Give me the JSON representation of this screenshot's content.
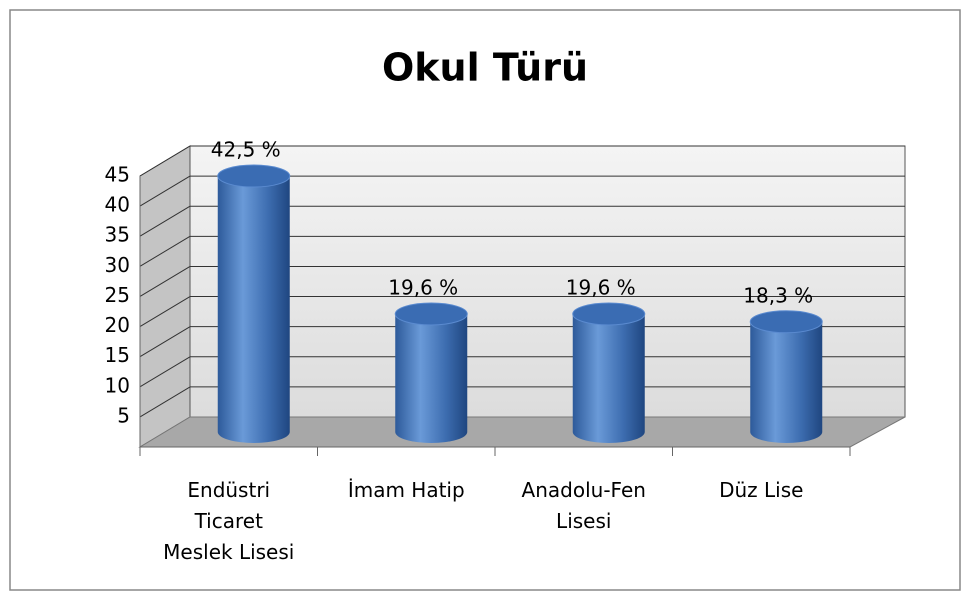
{
  "chart_data": {
    "type": "bar",
    "title": "Okul Türü",
    "categories": [
      "Endüstri Ticaret Meslek Lisesi",
      "İmam Hatip",
      "Anadolu-Fen Lisesi",
      "Düz Lise"
    ],
    "values": [
      42.5,
      19.6,
      19.6,
      18.3
    ],
    "value_labels": [
      "42,5 %",
      "19,6 %",
      "19,6 %",
      "18,3 %"
    ],
    "color": "#4a7ebf",
    "ylim": [
      0,
      45
    ],
    "yticks": [
      5,
      10,
      15,
      20,
      25,
      30,
      35,
      40,
      45
    ],
    "grid": true
  }
}
